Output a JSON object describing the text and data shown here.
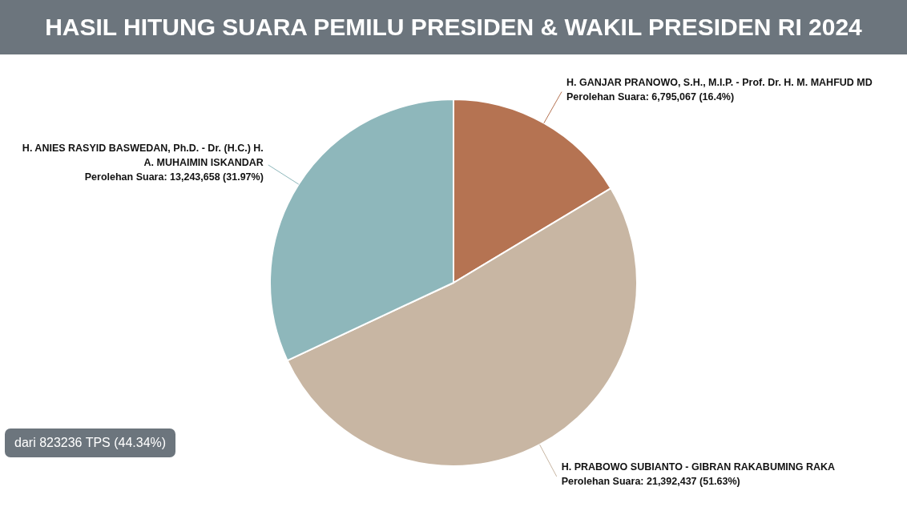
{
  "chart_data": {
    "type": "pie",
    "title": "HASIL HITUNG SUARA PEMILU PRESIDEN & WAKIL PRESIDEN RI 2024",
    "categories": [
      "H. GANJAR PRANOWO, S.H., M.I.P. - Prof. Dr. H. M. MAHFUD MD",
      "H. PRABOWO SUBIANTO - GIBRAN RAKABUMING RAKA",
      "H. ANIES RASYID BASWEDAN, Ph.D. - Dr. (H.C.) H. A. MUHAIMIN ISKANDAR"
    ],
    "values": [
      6795067,
      21392437,
      13243658
    ],
    "colors": [
      "#b57352",
      "#c8b6a3",
      "#8eb7bb"
    ],
    "value_labels": [
      "Perolehan Suara: 6,795,067 (16.4%)",
      "Perolehan Suara: 21,392,437 (51.63%)",
      "Perolehan Suara: 13,243,658 (31.97%)"
    ],
    "annotations": [
      "dari 823236 TPS (44.34%)"
    ]
  }
}
